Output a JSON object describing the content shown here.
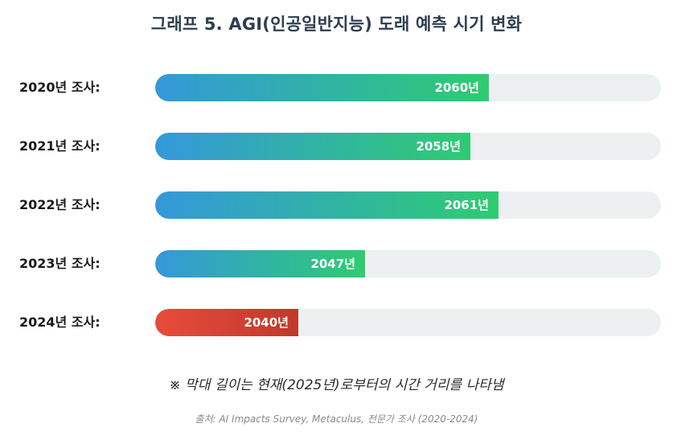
{
  "chart_data": {
    "type": "bar",
    "orientation": "horizontal",
    "title": "그래프 5. AGI(인공일반지능) 도래 예측 시기 변화",
    "categories": [
      "2020년 조사:",
      "2021년 조사:",
      "2022년 조사:",
      "2023년 조사:",
      "2024년 조사:"
    ],
    "values": [
      2060,
      2058,
      2061,
      2047,
      2040
    ],
    "value_labels": [
      "2060년",
      "2058년",
      "2061년",
      "2047년",
      "2040년"
    ],
    "reference_year": 2025,
    "bar_scale_max_years_from_reference": 53,
    "series_colors": {
      "default_start": "#3498db",
      "default_end": "#2ecc71",
      "latest_start": "#e74c3c",
      "latest_end": "#c0392b",
      "track": "#ecf0f1"
    },
    "highlighted_category": "2024년 조사:",
    "grid": false,
    "legend": "none"
  },
  "note": "※ 막대 길이는 현재(2025년)로부터의 시간 거리를 나타냄",
  "source": "출처: AI Impacts Survey, Metaculus, 전문가 조사 (2020-2024)"
}
